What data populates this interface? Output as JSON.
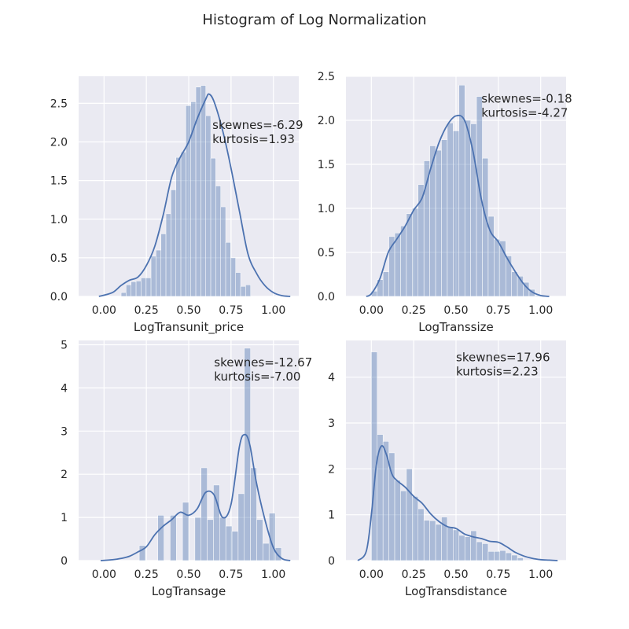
{
  "figure": {
    "title": "Histogram of Log Normalization"
  },
  "chart_data": [
    {
      "type": "bar",
      "xlabel": "LogTransunit_price",
      "xlim": [
        -0.15,
        1.15
      ],
      "ylim": [
        0,
        2.85
      ],
      "xticks": [
        "0.00",
        "0.25",
        "0.50",
        "0.75",
        "1.00"
      ],
      "xtick_values": [
        0,
        0.25,
        0.5,
        0.75,
        1.0
      ],
      "yticks": [
        "0.0",
        "0.5",
        "1.0",
        "1.5",
        "2.0",
        "2.5"
      ],
      "ytick_values": [
        0,
        0.5,
        1.0,
        1.5,
        2.0,
        2.5
      ],
      "annotation": [
        "skewnes=-6.29",
        "kurtosis=1.93"
      ],
      "annotation_pos": [
        0.64,
        2.17
      ],
      "bin_edges_start": 0.101,
      "bin_width": 0.0294,
      "values": [
        0.05,
        0.15,
        0.19,
        0.2,
        0.24,
        0.24,
        0.52,
        0.6,
        0.81,
        1.07,
        1.38,
        1.8,
        1.87,
        2.47,
        2.52,
        2.71,
        2.73,
        2.34,
        1.79,
        1.43,
        1.16,
        0.7,
        0.5,
        0.31,
        0.13,
        0.15
      ],
      "kde": {
        "x": [
          -0.03,
          0.05,
          0.1,
          0.15,
          0.2,
          0.25,
          0.3,
          0.35,
          0.4,
          0.45,
          0.5,
          0.55,
          0.6,
          0.62,
          0.65,
          0.7,
          0.75,
          0.8,
          0.85,
          0.9,
          0.95,
          1.0,
          1.05,
          1.1
        ],
        "y": [
          0.0,
          0.05,
          0.14,
          0.21,
          0.25,
          0.4,
          0.65,
          1.06,
          1.55,
          1.8,
          2.0,
          2.3,
          2.55,
          2.62,
          2.52,
          2.15,
          1.66,
          1.1,
          0.55,
          0.3,
          0.14,
          0.05,
          0.01,
          0.0
        ]
      }
    },
    {
      "type": "bar",
      "xlabel": "LogTranssize",
      "xlim": [
        -0.15,
        1.15
      ],
      "ylim": [
        0,
        2.5
      ],
      "xticks": [
        "0.00",
        "0.25",
        "0.50",
        "0.75",
        "1.00"
      ],
      "xtick_values": [
        0,
        0.25,
        0.5,
        0.75,
        1.0
      ],
      "yticks": [
        "0.0",
        "0.5",
        "1.0",
        "1.5",
        "2.0",
        "2.5"
      ],
      "ytick_values": [
        0,
        0.5,
        1.0,
        1.5,
        2.0,
        2.5
      ],
      "annotation": [
        "skewnes=-0.18",
        "kurtosis=-4.27"
      ],
      "annotation_pos": [
        0.65,
        2.2
      ],
      "bin_edges_start": 0.0,
      "bin_width": 0.0345,
      "values": [
        0.06,
        0.19,
        0.28,
        0.68,
        0.72,
        0.8,
        0.94,
        1.0,
        1.27,
        1.54,
        1.71,
        1.66,
        1.78,
        1.97,
        1.88,
        2.4,
        2.0,
        1.96,
        2.27,
        1.57,
        0.91,
        0.65,
        0.63,
        0.46,
        0.28,
        0.23,
        0.16,
        0.08,
        0.01
      ],
      "kde": {
        "x": [
          -0.03,
          0.0,
          0.05,
          0.1,
          0.15,
          0.2,
          0.25,
          0.3,
          0.35,
          0.4,
          0.45,
          0.5,
          0.55,
          0.6,
          0.65,
          0.7,
          0.75,
          0.8,
          0.85,
          0.9,
          0.95,
          1.0,
          1.05
        ],
        "y": [
          0.0,
          0.03,
          0.2,
          0.5,
          0.65,
          0.8,
          0.98,
          1.12,
          1.45,
          1.75,
          1.95,
          2.05,
          2.0,
          1.65,
          1.1,
          0.75,
          0.62,
          0.44,
          0.28,
          0.14,
          0.05,
          0.01,
          0.0
        ]
      }
    },
    {
      "type": "bar",
      "xlabel": "LogTransage",
      "xlim": [
        -0.15,
        1.15
      ],
      "ylim": [
        0,
        5.1
      ],
      "xticks": [
        "0.00",
        "0.25",
        "0.50",
        "0.75",
        "1.00"
      ],
      "xtick_values": [
        0,
        0.25,
        0.5,
        0.75,
        1.0
      ],
      "yticks": [
        "0",
        "1",
        "2",
        "3",
        "4",
        "5"
      ],
      "ytick_values": [
        0,
        1,
        2,
        3,
        4,
        5
      ],
      "annotation": [
        "skewnes=-12.67",
        "kurtosis=-7.00"
      ],
      "annotation_pos": [
        0.65,
        4.5
      ],
      "bin_edges_start": 0.208,
      "bin_width": 0.0365,
      "values": [
        0.35,
        0.0,
        0.0,
        1.05,
        0.0,
        1.05,
        0.0,
        1.35,
        0.0,
        1.0,
        2.15,
        0.95,
        1.75,
        1.0,
        0.8,
        0.68,
        1.55,
        4.92,
        2.15,
        0.95,
        0.4,
        1.1,
        0.3
      ],
      "kde": {
        "x": [
          -0.02,
          0.05,
          0.1,
          0.15,
          0.2,
          0.25,
          0.3,
          0.35,
          0.4,
          0.45,
          0.5,
          0.55,
          0.6,
          0.65,
          0.7,
          0.75,
          0.8,
          0.83,
          0.86,
          0.9,
          0.95,
          1.0,
          1.05,
          1.1
        ],
        "y": [
          0.0,
          0.02,
          0.05,
          0.1,
          0.2,
          0.32,
          0.6,
          0.8,
          0.95,
          1.12,
          1.05,
          1.2,
          1.58,
          1.52,
          1.0,
          1.3,
          2.65,
          2.92,
          2.7,
          1.8,
          0.95,
          0.3,
          0.05,
          0.0
        ]
      }
    },
    {
      "type": "bar",
      "xlabel": "LogTransdistance",
      "xlim": [
        -0.15,
        1.15
      ],
      "ylim": [
        0,
        4.8
      ],
      "xticks": [
        "0.00",
        "0.25",
        "0.50",
        "0.75",
        "1.00"
      ],
      "xtick_values": [
        0,
        0.25,
        0.5,
        0.75,
        1.0
      ],
      "yticks": [
        "0",
        "1",
        "2",
        "3",
        "4"
      ],
      "ytick_values": [
        0,
        1,
        2,
        3,
        4
      ],
      "annotation": [
        "skewnes=17.96",
        "kurtosis=2.23"
      ],
      "annotation_pos": [
        0.5,
        4.35
      ],
      "bin_edges_start": 0.0,
      "bin_width": 0.0345,
      "values": [
        4.55,
        2.75,
        2.6,
        2.35,
        1.75,
        1.52,
        2.0,
        1.4,
        1.13,
        0.88,
        0.87,
        0.79,
        0.95,
        0.74,
        0.67,
        0.55,
        0.52,
        0.65,
        0.41,
        0.37,
        0.2,
        0.2,
        0.22,
        0.17,
        0.12,
        0.06
      ],
      "kde": {
        "x": [
          -0.08,
          -0.03,
          0.0,
          0.03,
          0.06,
          0.09,
          0.12,
          0.15,
          0.2,
          0.25,
          0.3,
          0.35,
          0.4,
          0.45,
          0.5,
          0.55,
          0.6,
          0.65,
          0.7,
          0.75,
          0.8,
          0.85,
          0.9,
          0.95,
          1.0,
          1.05,
          1.1
        ],
        "y": [
          0.0,
          0.2,
          1.0,
          2.1,
          2.5,
          2.3,
          1.9,
          1.75,
          1.6,
          1.4,
          1.25,
          1.02,
          0.85,
          0.74,
          0.7,
          0.58,
          0.52,
          0.48,
          0.42,
          0.4,
          0.3,
          0.18,
          0.1,
          0.05,
          0.02,
          0.01,
          0.0
        ]
      }
    }
  ]
}
